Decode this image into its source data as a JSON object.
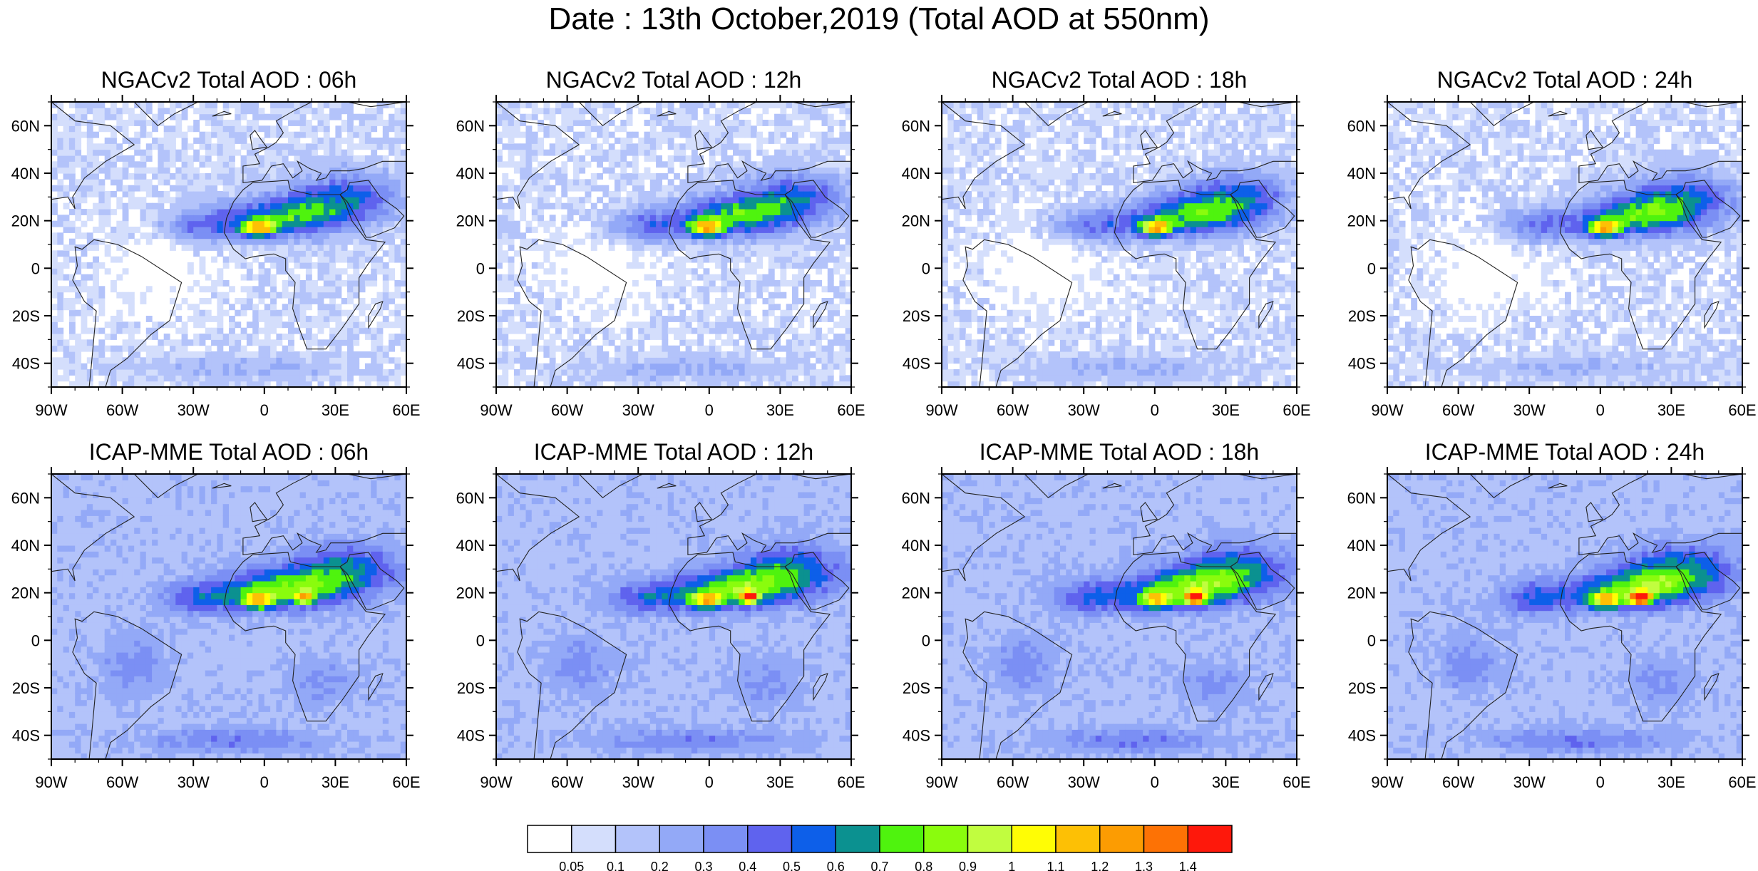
{
  "title": "Date : 13th October,2019 (Total AOD at 550nm)",
  "axes": {
    "lat_labels": [
      "60N",
      "40N",
      "20N",
      "0",
      "20S",
      "40S"
    ],
    "lon_labels": [
      "90W",
      "60W",
      "30W",
      "0",
      "30E",
      "60E"
    ],
    "lat_values": [
      60,
      40,
      20,
      0,
      -20,
      -40
    ],
    "lon_values": [
      -90,
      -60,
      -30,
      0,
      30,
      60
    ],
    "lat_range": [
      -50,
      70
    ],
    "lon_range": [
      -90,
      60
    ]
  },
  "panels": [
    {
      "title": "NGACv2 Total AOD : 06h",
      "model": "NGACv2",
      "hour": 6
    },
    {
      "title": "NGACv2 Total AOD : 12h",
      "model": "NGACv2",
      "hour": 12
    },
    {
      "title": "NGACv2 Total AOD : 18h",
      "model": "NGACv2",
      "hour": 18
    },
    {
      "title": "NGACv2 Total AOD : 24h",
      "model": "NGACv2",
      "hour": 24
    },
    {
      "title": "ICAP-MME Total AOD : 06h",
      "model": "ICAP-MME",
      "hour": 6
    },
    {
      "title": "ICAP-MME Total AOD : 12h",
      "model": "ICAP-MME",
      "hour": 12
    },
    {
      "title": "ICAP-MME Total AOD : 18h",
      "model": "ICAP-MME",
      "hour": 18
    },
    {
      "title": "ICAP-MME Total AOD : 24h",
      "model": "ICAP-MME",
      "hour": 24
    }
  ],
  "colorbar": {
    "labels": [
      "0.05",
      "0.1",
      "0.2",
      "0.3",
      "0.4",
      "0.5",
      "0.6",
      "0.7",
      "0.8",
      "0.9",
      "1",
      "1.1",
      "1.2",
      "1.3",
      "1.4"
    ],
    "colors": [
      "#ffffff",
      "#d4defc",
      "#b3c3fa",
      "#93a9f7",
      "#7b8ff4",
      "#5f63ee",
      "#0d5fe9",
      "#0b9190",
      "#4ff30e",
      "#8afc0d",
      "#c1fd3f",
      "#fffd05",
      "#fdc005",
      "#fc9c02",
      "#fd7205",
      "#fe180b"
    ]
  }
}
